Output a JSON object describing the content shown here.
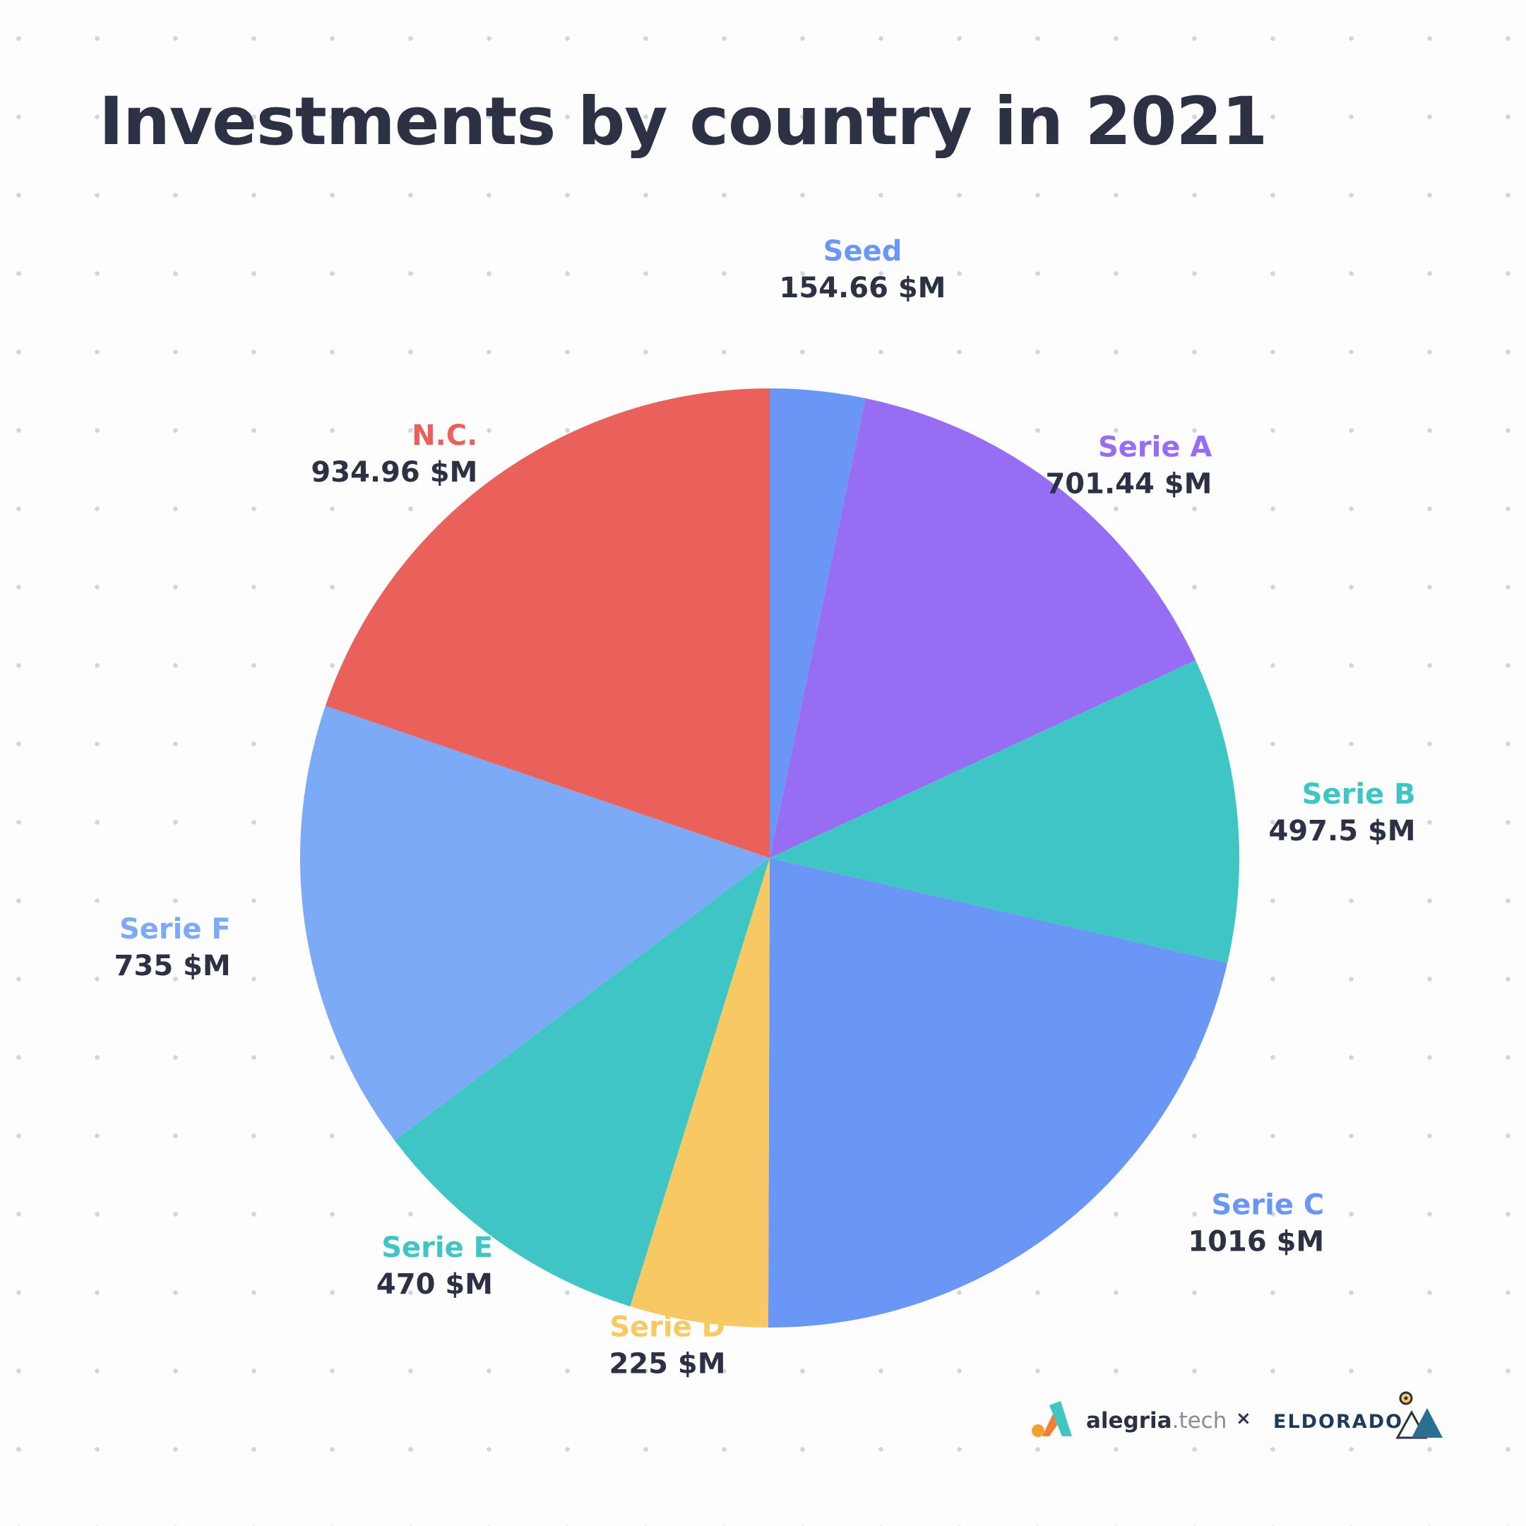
{
  "title": "Investments by country in 2021",
  "chart_data": {
    "type": "pie",
    "unit": "$M",
    "categories": [
      "Seed",
      "Serie A",
      "Serie B",
      "Serie C",
      "Serie D",
      "Serie E",
      "Serie F",
      "N.C."
    ],
    "values": [
      154.66,
      701.44,
      497.5,
      1016,
      225,
      470,
      735,
      934.96
    ],
    "value_labels": [
      "154.66 $M",
      "701.44 $M",
      "497.5 $M",
      "1016 $M",
      "225 $M",
      "470 $M",
      "735 $M",
      "934.96 $M"
    ],
    "colors": [
      "#6a96f5",
      "#976df4",
      "#3fc6c4",
      "#6a96f5",
      "#f6c962",
      "#3fc6c4",
      "#7caaf6",
      "#ea615c"
    ],
    "start_angle": "top",
    "direction": "clockwise",
    "legend": "none"
  },
  "footer": {
    "brand1_bold": "alegria",
    "brand1_light": ".tech",
    "separator": "×",
    "brand2": "ELDORADO",
    "icons": [
      "alegria-logo-icon",
      "eldorado-logo-icon"
    ]
  }
}
